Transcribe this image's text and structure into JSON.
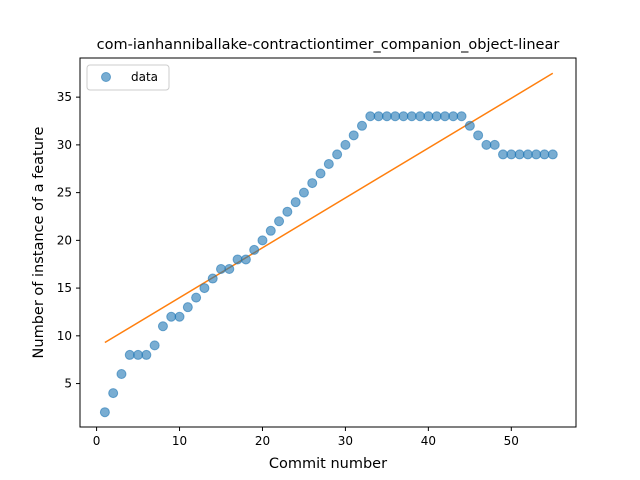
{
  "chart_data": {
    "type": "scatter",
    "title": "com-ianhanniballake-contractiontimer_companion_object-linear",
    "xlabel": "Commit number",
    "ylabel": "Number of instance of a feature",
    "xlim": [
      -2,
      57.8
    ],
    "ylim": [
      0.45,
      39.1
    ],
    "xticks": [
      0,
      10,
      20,
      30,
      40,
      50
    ],
    "yticks": [
      5,
      10,
      15,
      20,
      25,
      30,
      35
    ],
    "grid": false,
    "legend": {
      "placement": "top-left",
      "entries": [
        "data"
      ]
    },
    "colors": {
      "data": "#1f77b4",
      "fit": "#ff7f0e"
    },
    "series": [
      {
        "name": "data",
        "kind": "scatter",
        "x": [
          1,
          2,
          3,
          4,
          5,
          6,
          7,
          8,
          9,
          10,
          11,
          12,
          13,
          14,
          15,
          16,
          17,
          18,
          19,
          20,
          21,
          22,
          23,
          24,
          25,
          26,
          27,
          28,
          29,
          30,
          31,
          32,
          33,
          34,
          35,
          36,
          37,
          38,
          39,
          40,
          41,
          42,
          43,
          44,
          45,
          46,
          47,
          48,
          49,
          50,
          51,
          52,
          53,
          54,
          55
        ],
        "y": [
          2,
          4,
          6,
          8,
          8,
          8,
          9,
          11,
          12,
          12,
          13,
          14,
          15,
          16,
          17,
          17,
          18,
          18,
          19,
          20,
          21,
          22,
          23,
          24,
          25,
          26,
          27,
          28,
          29,
          30,
          31,
          32,
          33,
          33,
          33,
          33,
          33,
          33,
          33,
          33,
          33,
          33,
          33,
          33,
          32,
          31,
          30,
          30,
          29,
          29,
          29,
          29,
          29,
          29,
          29
        ]
      },
      {
        "kind": "line",
        "x": [
          1,
          55
        ],
        "y": [
          9.3,
          37.5
        ]
      }
    ]
  }
}
